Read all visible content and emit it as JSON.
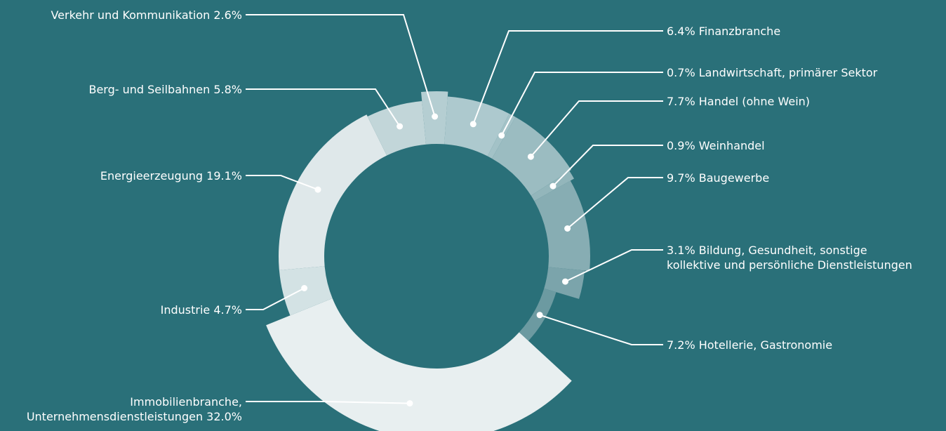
{
  "chart_data": {
    "type": "pie",
    "title": "",
    "slices": [
      {
        "label": "Finanzbranche",
        "value": 6.4,
        "color": "#adc9ce",
        "text": [
          "6.4% Finanzbranche"
        ]
      },
      {
        "label": "Landwirtschaft, primärer Sektor",
        "value": 0.7,
        "color": "#a3c2c7",
        "text": [
          "0.7% Landwirtschaft, primärer Sektor"
        ]
      },
      {
        "label": "Handel (ohne Wein)",
        "value": 7.7,
        "color": "#9bbcc1",
        "text": [
          "7.7% Handel (ohne Wein)"
        ]
      },
      {
        "label": "Weinhandel",
        "value": 0.9,
        "color": "#93b6bb",
        "text": [
          "0.9% Weinhandel"
        ]
      },
      {
        "label": "Baugewerbe",
        "value": 9.7,
        "color": "#87adb3",
        "text": [
          "9.7% Baugewerbe"
        ]
      },
      {
        "label": "Bildung, Gesundheit, sonstige kollektive und persönliche Dienstleistungen",
        "value": 3.1,
        "color": "#7ba4ab",
        "text": [
          "3.1% Bildung, Gesundheit, sonstige",
          "kollektive und persönliche Dienstleistungen"
        ]
      },
      {
        "label": "Hotellerie, Gastronomie",
        "value": 7.2,
        "color": "#6c9aa1",
        "text": [
          "7.2% Hotellerie, Gastronomie"
        ]
      },
      {
        "label": "Immobilienbranche, Unternehmensdienstleistungen",
        "value": 32.0,
        "color": "#e8eff0",
        "text": [
          "Immobilienbranche,",
          "Unternehmensdienstleistungen 32.0%"
        ]
      },
      {
        "label": "Industrie",
        "value": 4.7,
        "color": "#d3e2e4",
        "text": [
          "Industrie 4.7%"
        ]
      },
      {
        "label": "Energieerzeugung",
        "value": 19.1,
        "color": "#dfe8ea",
        "text": [
          "Energieerzeugung  19.1%"
        ]
      },
      {
        "label": "Berg- und Seilbahnen",
        "value": 5.8,
        "color": "#c2d6d9",
        "text": [
          "Berg- und Seilbahnen 5.8%"
        ]
      },
      {
        "label": "Verkehr und Kommunikation",
        "value": 2.6,
        "color": "#b5ced2",
        "text": [
          "Verkehr und Kommunikation 2.6%"
        ]
      }
    ]
  }
}
